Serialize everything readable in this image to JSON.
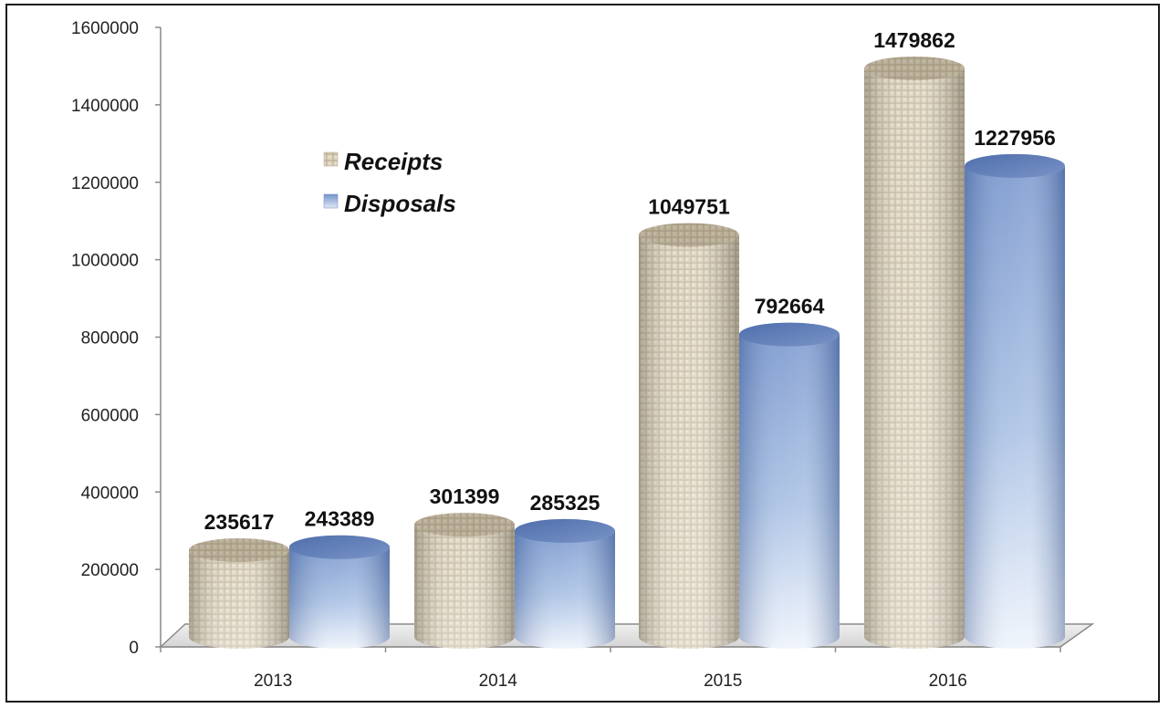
{
  "chart_data": {
    "type": "bar",
    "title": "",
    "xlabel": "",
    "ylabel": "",
    "categories": [
      "2013",
      "2014",
      "2015",
      "2016"
    ],
    "series": [
      {
        "name": "Receipts",
        "values": [
          235617,
          301399,
          1049751,
          1479862
        ],
        "color": "#d9cfb6"
      },
      {
        "name": "Disposals",
        "values": [
          243389,
          285325,
          792664,
          1227956
        ],
        "color": "#7f9fd0"
      }
    ],
    "ylim": [
      0,
      1600000
    ],
    "yticks": [
      0,
      200000,
      400000,
      600000,
      800000,
      1000000,
      1200000,
      1400000,
      1600000
    ],
    "grid": false,
    "legend": "upper-left"
  }
}
